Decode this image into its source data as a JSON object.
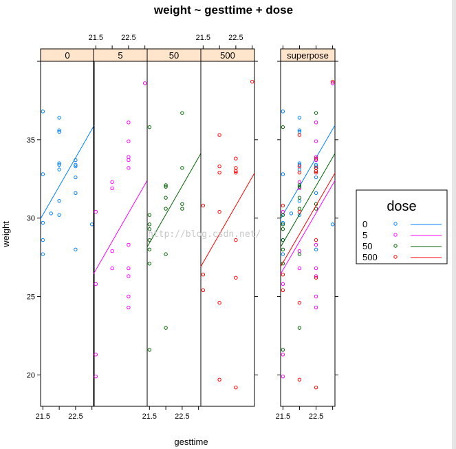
{
  "chart_data": {
    "type": "scatter",
    "title": "weight ~ gesttime + dose",
    "xlabel": "gesttime",
    "ylabel": "weight",
    "ylim": [
      18,
      40
    ],
    "y_ticks": [
      20,
      25,
      30,
      35
    ],
    "x_ticks_labeled": [
      "21.5",
      "22.5"
    ],
    "panels": [
      {
        "strip": "0",
        "color": "#0080ff",
        "xlim": [
          21.43,
          23.07
        ],
        "points": [
          [
            21.5,
            36.8
          ],
          [
            21.5,
            32.8
          ],
          [
            21.5,
            29.7
          ],
          [
            21.5,
            28.6
          ],
          [
            21.5,
            27.7
          ],
          [
            21.75,
            30.3
          ],
          [
            22.0,
            36.4
          ],
          [
            22.0,
            35.6
          ],
          [
            22.0,
            35.5
          ],
          [
            22.0,
            33.5
          ],
          [
            22.0,
            33.4
          ],
          [
            22.0,
            33.1
          ],
          [
            22.0,
            31.1
          ],
          [
            22.0,
            30.2
          ],
          [
            22.5,
            33.7
          ],
          [
            22.5,
            33.4
          ],
          [
            22.5,
            33.3
          ],
          [
            22.5,
            32.6
          ],
          [
            22.5,
            31.6
          ],
          [
            22.5,
            28.0
          ],
          [
            23.0,
            29.6
          ]
        ],
        "fit": [
          [
            21.43,
            29.96
          ],
          [
            23.07,
            35.92
          ]
        ]
      },
      {
        "strip": "5",
        "color": "#ff00ff",
        "xlim": [
          21.43,
          23.07
        ],
        "points": [
          [
            21.5,
            30.4
          ],
          [
            21.5,
            25.8
          ],
          [
            21.5,
            21.3
          ],
          [
            21.5,
            19.9
          ],
          [
            22.0,
            32.3
          ],
          [
            22.0,
            31.9
          ],
          [
            22.0,
            26.8
          ],
          [
            22.0,
            27.9
          ],
          [
            22.5,
            36.1
          ],
          [
            22.5,
            34.9
          ],
          [
            22.5,
            33.9
          ],
          [
            22.5,
            33.7
          ],
          [
            22.5,
            33.2
          ],
          [
            22.5,
            28.3
          ],
          [
            22.5,
            26.8
          ],
          [
            22.5,
            26.3
          ],
          [
            22.5,
            25.0
          ],
          [
            22.5,
            24.3
          ],
          [
            23.0,
            38.6
          ]
        ],
        "fit": [
          [
            21.43,
            26.44
          ],
          [
            23.07,
            32.4
          ]
        ]
      },
      {
        "strip": "50",
        "color": "#006400",
        "xlim": [
          21.43,
          23.07
        ],
        "points": [
          [
            21.5,
            35.8
          ],
          [
            21.5,
            30.2
          ],
          [
            21.5,
            29.6
          ],
          [
            21.5,
            29.3
          ],
          [
            21.5,
            28.6
          ],
          [
            21.5,
            28.0
          ],
          [
            21.5,
            27.1
          ],
          [
            21.5,
            21.6
          ],
          [
            22.0,
            32.1
          ],
          [
            22.0,
            32.0
          ],
          [
            22.0,
            31.3
          ],
          [
            22.0,
            30.6
          ],
          [
            22.0,
            27.7
          ],
          [
            22.0,
            23.0
          ],
          [
            22.5,
            36.7
          ],
          [
            22.5,
            33.2
          ],
          [
            22.5,
            30.9
          ],
          [
            22.5,
            30.6
          ]
        ],
        "fit": [
          [
            21.43,
            28.16
          ],
          [
            23.07,
            34.12
          ]
        ]
      },
      {
        "strip": "500",
        "color": "#ff0000",
        "xlim": [
          21.43,
          23.07
        ],
        "points": [
          [
            21.5,
            30.8
          ],
          [
            21.5,
            26.4
          ],
          [
            21.5,
            25.4
          ],
          [
            22.0,
            35.3
          ],
          [
            22.0,
            33.3
          ],
          [
            22.0,
            32.9
          ],
          [
            22.0,
            30.4
          ],
          [
            22.0,
            24.6
          ],
          [
            22.0,
            19.7
          ],
          [
            22.5,
            33.8
          ],
          [
            22.5,
            33.2
          ],
          [
            22.5,
            33.0
          ],
          [
            22.5,
            32.9
          ],
          [
            22.5,
            28.6
          ],
          [
            22.5,
            26.2
          ],
          [
            22.5,
            19.2
          ],
          [
            23.0,
            38.7
          ]
        ],
        "fit": [
          [
            21.43,
            26.91
          ],
          [
            23.07,
            32.87
          ]
        ]
      }
    ],
    "superpose_strip": "superpose",
    "legend": {
      "title": "dose",
      "entries": [
        {
          "label": "0",
          "color": "#0080ff"
        },
        {
          "label": "5",
          "color": "#ff00ff"
        },
        {
          "label": "50",
          "color": "#006400"
        },
        {
          "label": "500",
          "color": "#ff0000"
        }
      ]
    },
    "watermark": "http://blog.csdn.net/"
  }
}
